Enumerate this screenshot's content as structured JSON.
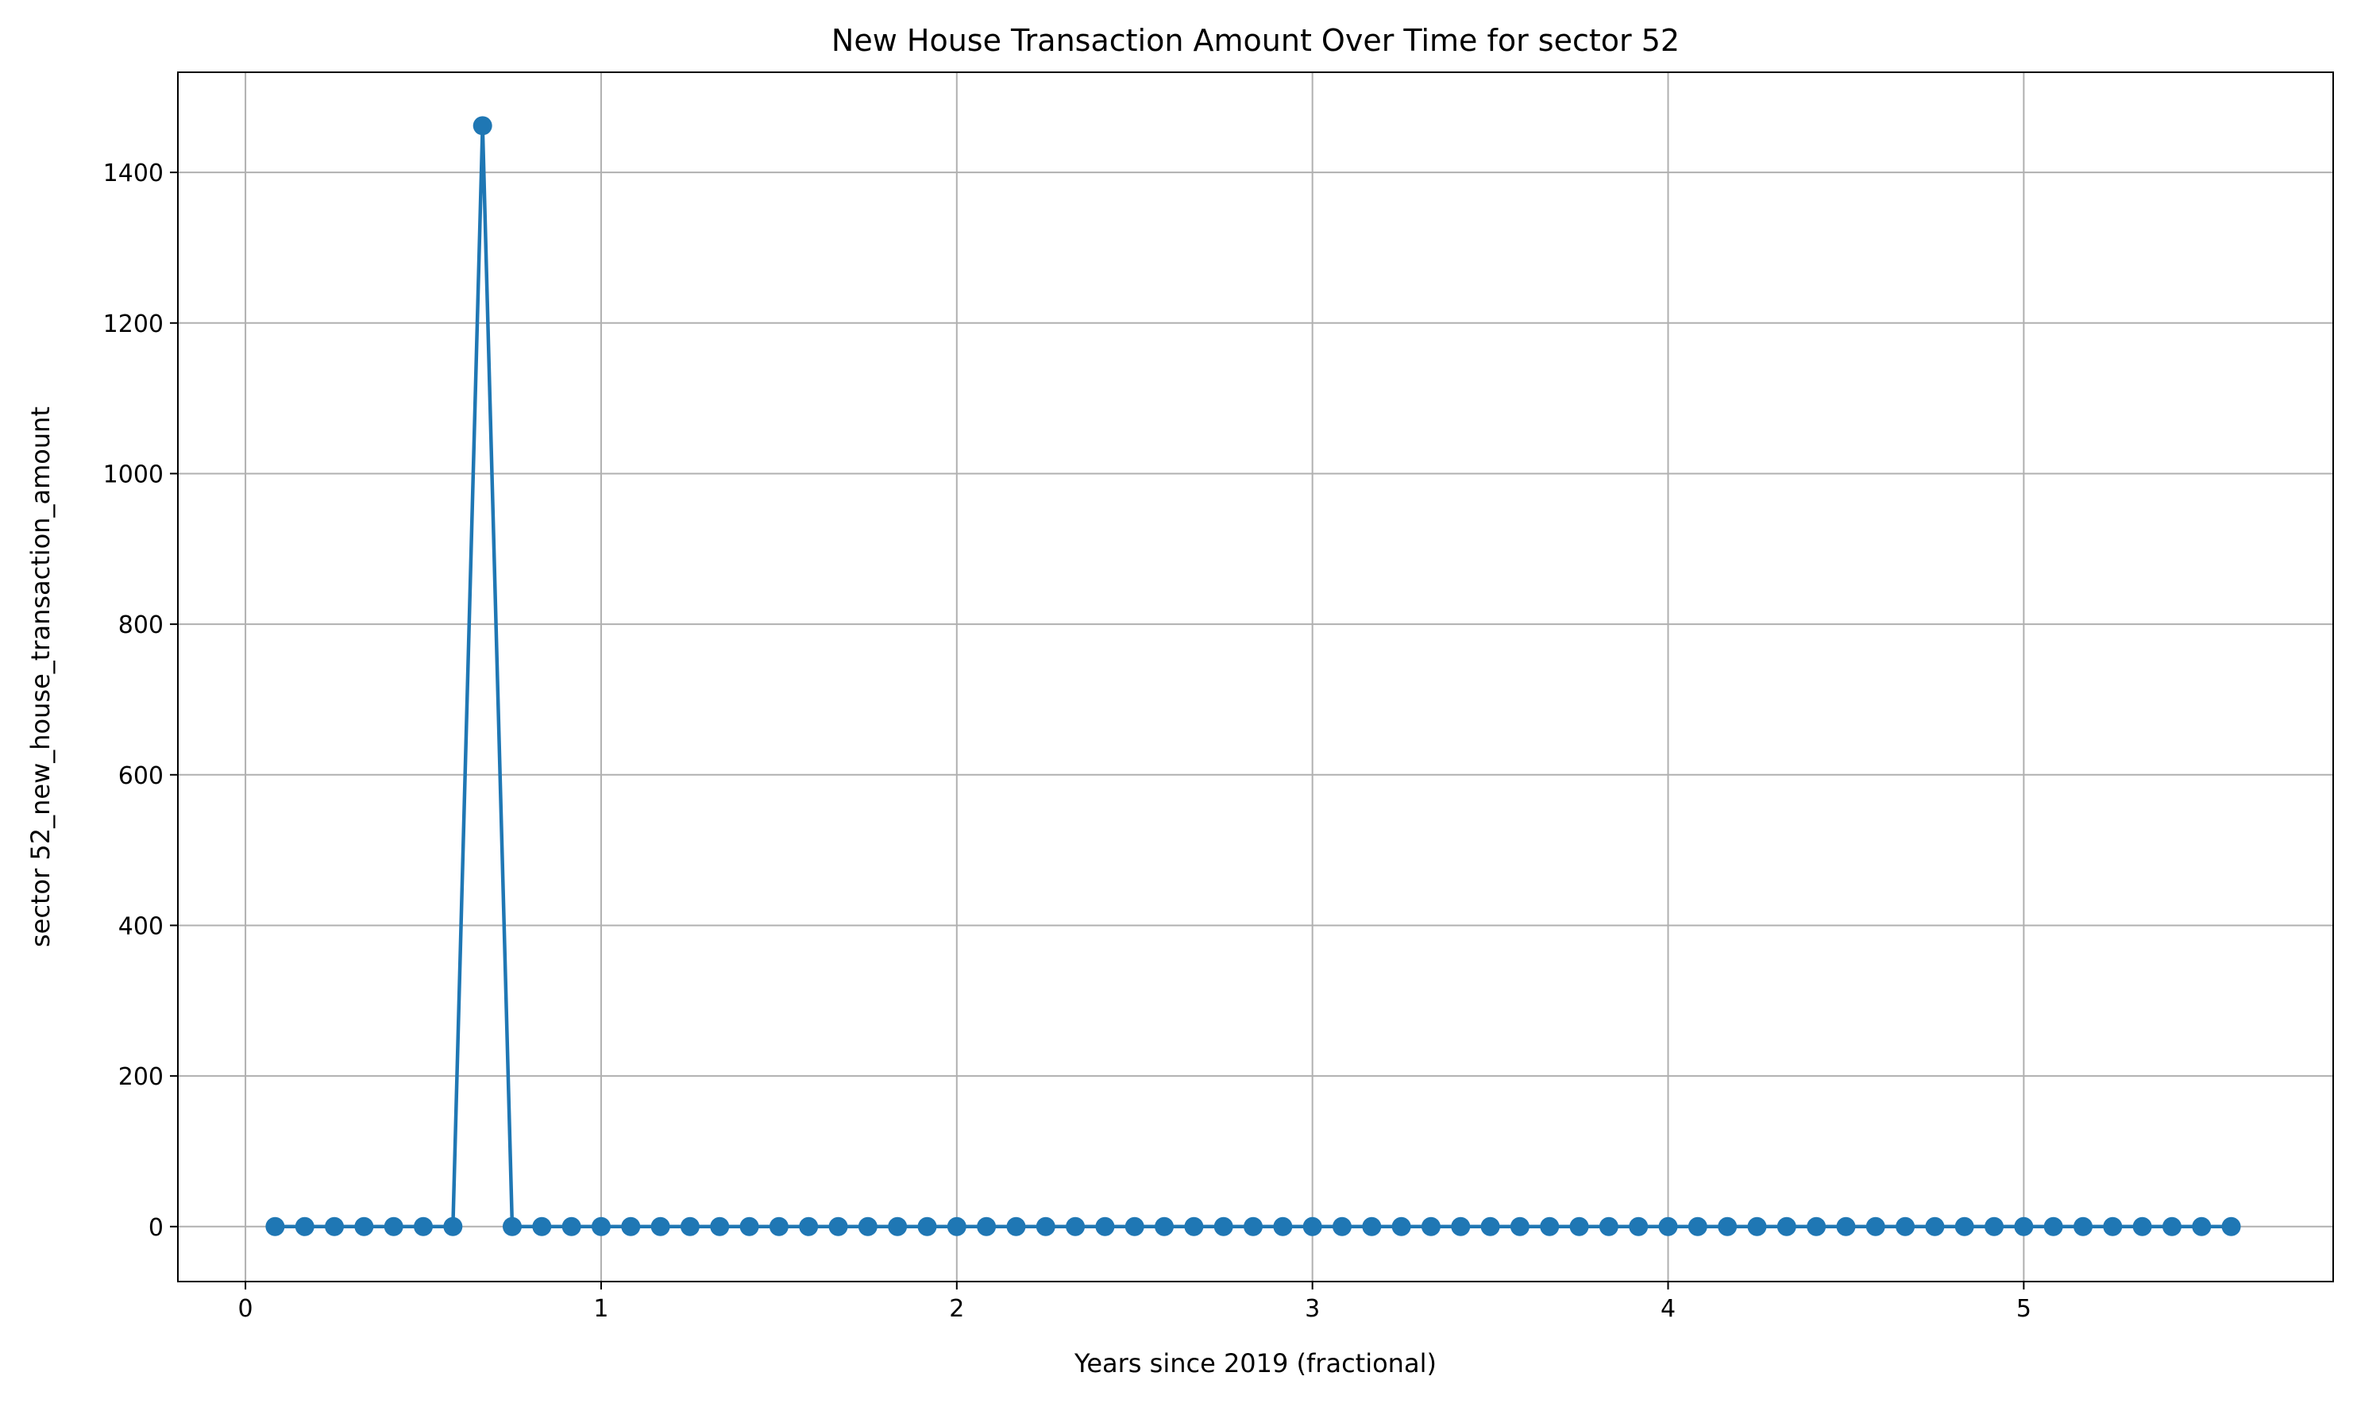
{
  "chart_data": {
    "type": "line",
    "title": "New House Transaction Amount Over Time for sector 52",
    "xlabel": "Years since 2019 (fractional)",
    "ylabel": "sector 52_new_house_transaction_amount",
    "xlim": [
      -0.19,
      5.87
    ],
    "ylim": [
      -73,
      1533
    ],
    "xticks": [
      0,
      1,
      2,
      3,
      4,
      5
    ],
    "yticks": [
      0,
      200,
      400,
      600,
      800,
      1000,
      1200,
      1400
    ],
    "grid": true,
    "marker": "circle",
    "color": "#1f77b4",
    "grid_color": "#b0b0b0",
    "series": [
      {
        "x": [
          0.0833,
          0.1667,
          0.25,
          0.3333,
          0.4167,
          0.5,
          0.5833,
          0.6667,
          0.75,
          0.8333,
          0.9167,
          1.0,
          1.0833,
          1.1667,
          1.25,
          1.3333,
          1.4167,
          1.5,
          1.5833,
          1.6667,
          1.75,
          1.8333,
          1.9167,
          2.0,
          2.0833,
          2.1667,
          2.25,
          2.3333,
          2.4167,
          2.5,
          2.5833,
          2.6667,
          2.75,
          2.8333,
          2.9167,
          3.0,
          3.0833,
          3.1667,
          3.25,
          3.3333,
          3.4167,
          3.5,
          3.5833,
          3.6667,
          3.75,
          3.8333,
          3.9167,
          4.0,
          4.0833,
          4.1667,
          4.25,
          4.3333,
          4.4167,
          4.5,
          4.5833,
          4.6667,
          4.75,
          4.8333,
          4.9167,
          5.0,
          5.0833,
          5.1667,
          5.25,
          5.3333,
          5.4167,
          5.5,
          5.5833
        ],
        "values": [
          0,
          0,
          0,
          0,
          0,
          0,
          0,
          1462,
          0,
          0,
          0,
          0,
          0,
          0,
          0,
          0,
          0,
          0,
          0,
          0,
          0,
          0,
          0,
          0,
          0,
          0,
          0,
          0,
          0,
          0,
          0,
          0,
          0,
          0,
          0,
          0,
          0,
          0,
          0,
          0,
          0,
          0,
          0,
          0,
          0,
          0,
          0,
          0,
          0,
          0,
          0,
          0,
          0,
          0,
          0,
          0,
          0,
          0,
          0,
          0,
          0,
          0,
          0,
          0,
          0,
          0,
          0
        ]
      }
    ]
  }
}
